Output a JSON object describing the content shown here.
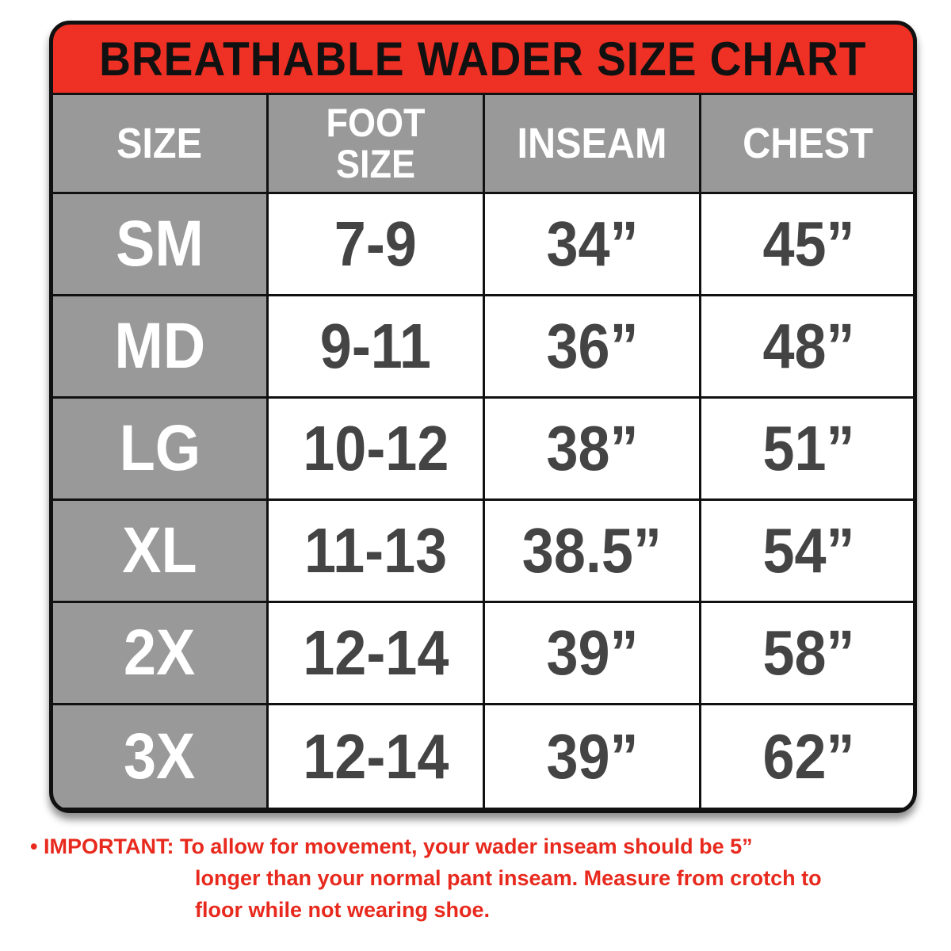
{
  "title": "BREATHABLE WADER SIZE CHART",
  "colors": {
    "title_band": "#ee3124",
    "header_bg": "#999999",
    "value_text": "#444444",
    "note_text": "#e8291d"
  },
  "chart_data": {
    "type": "table",
    "title": "BREATHABLE WADER SIZE CHART",
    "columns": [
      "SIZE",
      "FOOT SIZE",
      "INSEAM",
      "CHEST"
    ],
    "rows": [
      [
        "SM",
        "7-9",
        "34”",
        "45”"
      ],
      [
        "MD",
        "9-11",
        "36”",
        "48”"
      ],
      [
        "LG",
        "10-12",
        "38”",
        "51”"
      ],
      [
        "XL",
        "11-13",
        "38.5”",
        "54”"
      ],
      [
        "2X",
        "12-14",
        "39”",
        "58”"
      ],
      [
        "3X",
        "12-14",
        "39”",
        "62”"
      ]
    ]
  },
  "note": {
    "bullet": "• IMPORTANT:",
    "line1": "To allow for movement, your wader inseam should be 5”",
    "line2": "longer than your normal pant inseam. Measure from crotch to",
    "line3": "floor while not wearing shoe."
  }
}
